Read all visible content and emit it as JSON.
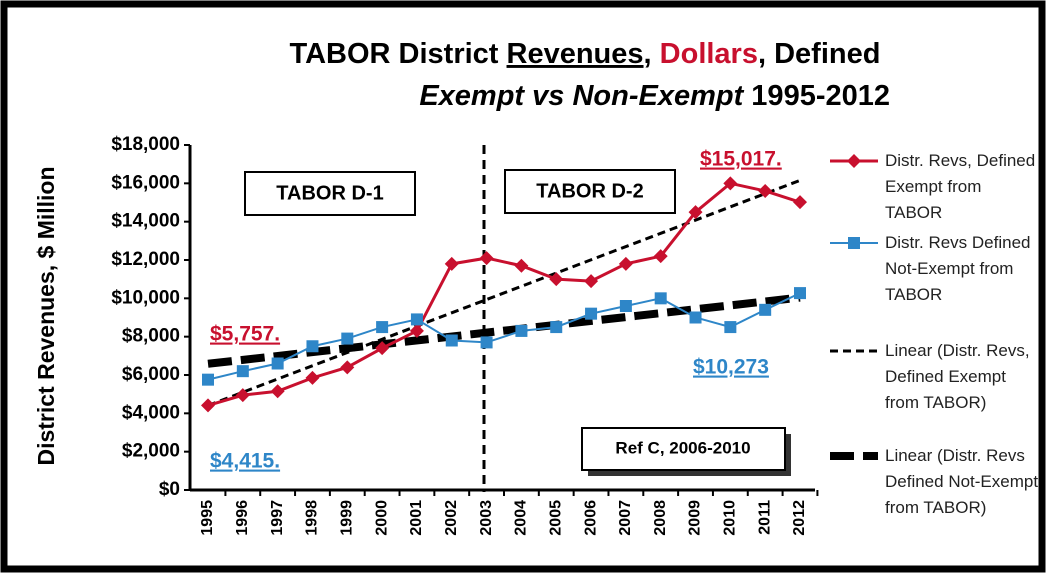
{
  "chart_data": {
    "type": "line",
    "title": [
      "TABOR District ",
      "Revenues",
      ", ",
      "Dollars",
      ", Defined"
    ],
    "subtitle": [
      "Exempt vs Non-Exempt",
      " 1995-2012"
    ],
    "y_label": "District Revenues, $ Million",
    "categories": [
      "1995",
      "1996",
      "1997",
      "1998",
      "1999",
      "2000",
      "2001",
      "2002",
      "2003",
      "2004",
      "2005",
      "2006",
      "2007",
      "2008",
      "2009",
      "2010",
      "2011",
      "2012"
    ],
    "series": [
      {
        "name": "Distr. Revs, Defined Exempt from TABOR",
        "color": "#c8102e",
        "values": [
          4415,
          4950,
          5150,
          5850,
          6400,
          7400,
          8300,
          11800,
          12100,
          11700,
          11000,
          10900,
          11800,
          12200,
          14500,
          16000,
          15600,
          15017
        ]
      },
      {
        "name": "Distr. Revs Defined Not-Exempt from TABOR",
        "color": "#2e86c8",
        "values": [
          5757,
          6200,
          6600,
          7500,
          7900,
          8500,
          8900,
          7800,
          7700,
          8300,
          8500,
          9200,
          9600,
          10000,
          9000,
          8500,
          9400,
          10273
        ]
      }
    ],
    "trendlines": [
      {
        "name": "Linear (Distr. Revs, Defined Exempt from TABOR)",
        "style": "thin-dashed"
      },
      {
        "name": "Linear (Distr. Revs Defined Not-Exempt from TABOR)",
        "style": "thick-dashed"
      }
    ],
    "annotations": [
      {
        "text": "$5,757.",
        "color": "#c8102e"
      },
      {
        "text": "$4,415.",
        "color": "#2e86c8"
      },
      {
        "text": "$15,017.",
        "color": "#c8102e"
      },
      {
        "text": "$10,273",
        "color": "#2e86c8"
      }
    ],
    "boxes": [
      "TABOR D-1",
      "TABOR D-2",
      "Ref C, 2006-2010"
    ],
    "ylim": [
      0,
      18000
    ],
    "yticks": [
      {
        "value": 0,
        "label": "$0"
      },
      {
        "value": 2000,
        "label": "$2,000"
      },
      {
        "value": 4000,
        "label": "$4,000"
      },
      {
        "value": 6000,
        "label": "$6,000"
      },
      {
        "value": 8000,
        "label": "$8,000"
      },
      {
        "value": 10000,
        "label": "$10,000"
      },
      {
        "value": 12000,
        "label": "$12,000"
      },
      {
        "value": 14000,
        "label": "$14,000"
      },
      {
        "value": 16000,
        "label": "$16,000"
      },
      {
        "value": 18000,
        "label": "$18,000"
      }
    ]
  }
}
